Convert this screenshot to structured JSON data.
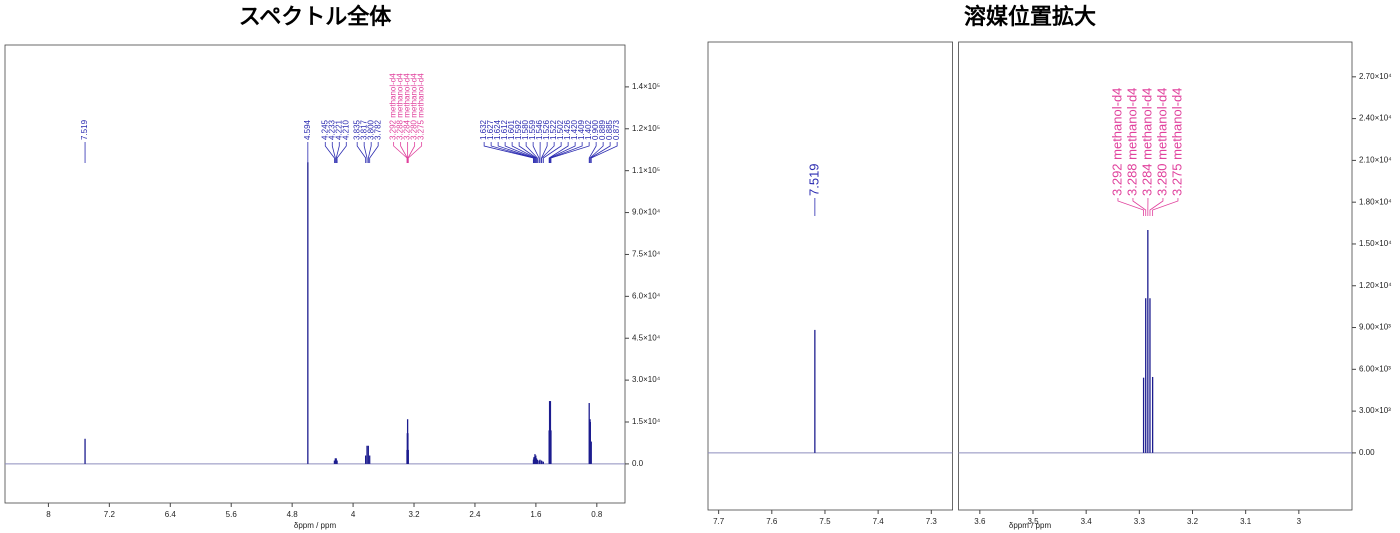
{
  "chart_data": [
    {
      "type": "spectrum",
      "title": "スペクトル全体",
      "xlabel": "δppm / ppm",
      "x_axes": [
        {
          "xlim": [
            8.57,
            0.43
          ],
          "xticks": [
            8.0,
            7.2,
            6.4,
            5.6,
            4.8,
            4.0,
            3.2,
            2.4,
            1.6,
            0.8
          ]
        }
      ],
      "ylim": [
        -14000,
        150000
      ],
      "yticks": [
        {
          "value": 0,
          "label": "0.0"
        },
        {
          "value": 15000,
          "label": "1.5×10⁴"
        },
        {
          "value": 30000,
          "label": "3.0×10⁴"
        },
        {
          "value": 45000,
          "label": "4.5×10⁴"
        },
        {
          "value": 60000,
          "label": "6.0×10⁴"
        },
        {
          "value": 75000,
          "label": "7.5×10⁴"
        },
        {
          "value": 90000,
          "label": "9.0×10⁴"
        },
        {
          "value": 105000,
          "label": "1.1×10⁵"
        },
        {
          "value": 120000,
          "label": "1.2×10⁵"
        },
        {
          "value": 135000,
          "label": "1.4×10⁵"
        }
      ],
      "series": [
        {
          "color": "#1c1c8f",
          "label_color": "#2b2bb0",
          "x": [
            7.519,
            4.594,
            4.245,
            4.233,
            4.221,
            4.21,
            3.835,
            3.817,
            3.8,
            3.782
          ],
          "values": [
            9000,
            108000,
            1200,
            2000,
            2000,
            1200,
            3000,
            6500,
            6500,
            3000
          ],
          "labels": [
            "7.519",
            "4.594",
            "4.245",
            "4.233",
            "4.221",
            "4.210",
            "3.835",
            "3.817",
            "3.800",
            "3.782"
          ]
        },
        {
          "color": "#1c1c8f",
          "label_color": "#e0409c",
          "x": [
            3.292,
            3.288,
            3.284,
            3.28,
            3.275
          ],
          "values": [
            5000,
            11000,
            16000,
            11000,
            5000
          ],
          "labels": [
            "3.292 methanol-d4",
            "3.288 methanol-d4",
            "3.284 methanol-d4",
            "3.280 methanol-d4",
            "3.275 methanol-d4"
          ]
        },
        {
          "color": "#1c1c8f",
          "label_color": "#2b2bb0",
          "x": [
            1.632,
            1.627,
            1.624,
            1.612,
            1.601,
            1.592,
            1.58,
            1.559,
            1.546,
            1.526,
            1.522,
            1.502,
            1.426,
            1.42,
            1.409,
            1.402,
            0.9,
            0.889,
            0.885,
            0.873
          ],
          "values": [
            1500,
            2000,
            2500,
            3500,
            3000,
            2000,
            1500,
            1200,
            1500,
            1200,
            1000,
            800,
            12000,
            22500,
            22500,
            12000,
            21800,
            16000,
            15000,
            8000
          ],
          "labels": [
            "1.632",
            "1.627",
            "1.624",
            "1.612",
            "1.601",
            "1.592",
            "1.580",
            "1.559",
            "1.546",
            "1.526",
            "1.522",
            "1.502",
            "1.426",
            "1.420",
            "1.409",
            "1.402",
            "0.900",
            "0.889",
            "0.885",
            "0.873"
          ]
        }
      ]
    },
    {
      "type": "spectrum",
      "title": "溶媒位置拡大",
      "xlabel": "δppm / ppm",
      "x_axes": [
        {
          "xlim": [
            7.72,
            7.26
          ],
          "xticks": [
            7.7,
            7.6,
            7.5,
            7.4,
            7.3
          ]
        },
        {
          "xlim": [
            3.64,
            2.9
          ],
          "xticks": [
            3.6,
            3.5,
            3.4,
            3.3,
            3.2,
            3.1,
            3.0
          ]
        }
      ],
      "ylim": [
        -4100,
        29500
      ],
      "yticks": [
        {
          "value": 0,
          "label": "0.00"
        },
        {
          "value": 3000,
          "label": "3.00×10³"
        },
        {
          "value": 6000,
          "label": "6.00×10³"
        },
        {
          "value": 9000,
          "label": "9.00×10³"
        },
        {
          "value": 12000,
          "label": "1.20×10⁴"
        },
        {
          "value": 15000,
          "label": "1.50×10⁴"
        },
        {
          "value": 18000,
          "label": "1.80×10⁴"
        },
        {
          "value": 21000,
          "label": "2.10×10⁴"
        },
        {
          "value": 24000,
          "label": "2.40×10⁴"
        },
        {
          "value": 27000,
          "label": "2.70×10⁴"
        }
      ],
      "series": [
        {
          "color": "#1c1c8f",
          "label_color": "#2b2bb0",
          "x": [
            7.519
          ],
          "values": [
            8830
          ],
          "labels": [
            "7.519"
          ]
        },
        {
          "color": "#1c1c8f",
          "label_color": "#e0409c",
          "x": [
            3.292,
            3.288,
            3.284,
            3.28,
            3.275
          ],
          "values": [
            5400,
            11100,
            16000,
            11100,
            5450
          ],
          "labels": [
            "3.292 methanol-d4",
            "3.288 methanol-d4",
            "3.284 methanol-d4",
            "3.280 methanol-d4",
            "3.275 methanol-d4"
          ]
        }
      ]
    }
  ]
}
